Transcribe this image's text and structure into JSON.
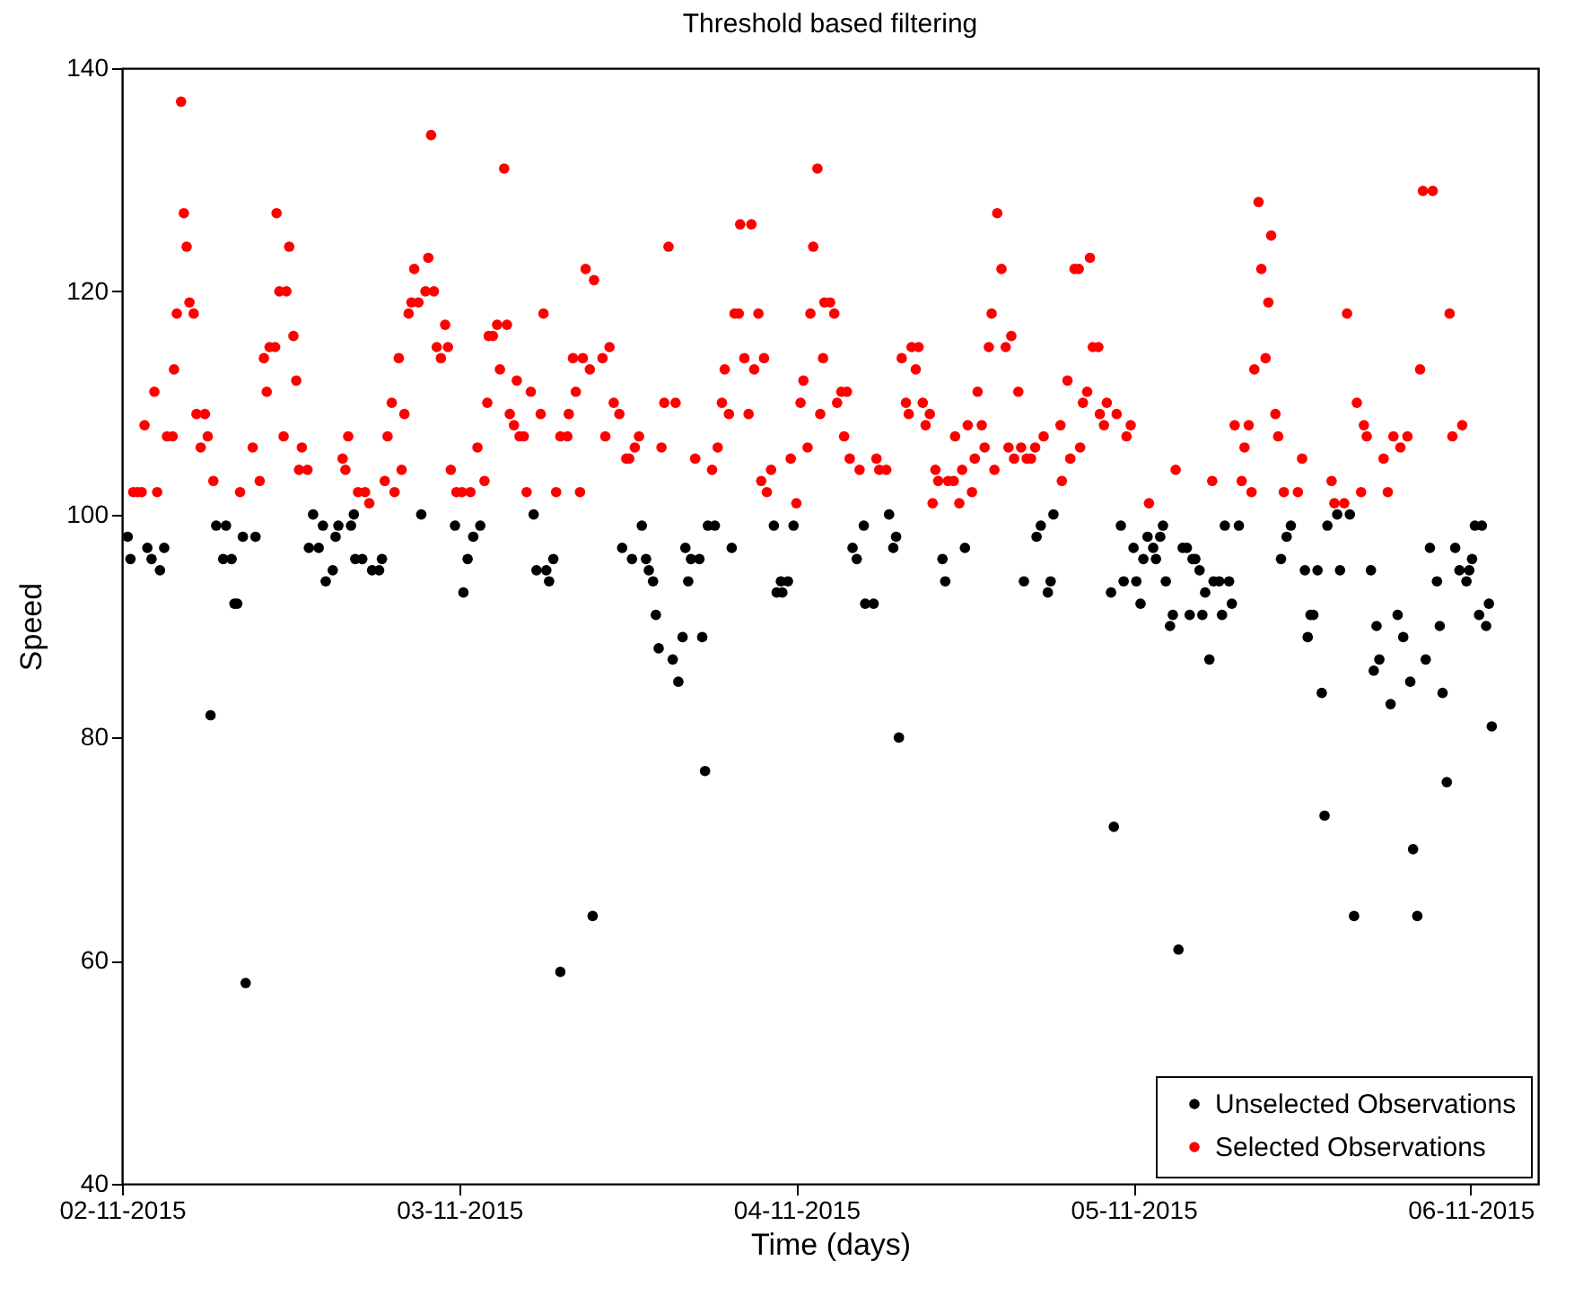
{
  "chart_data": {
    "type": "scatter",
    "title": "Threshold based filtering",
    "xlabel": "Time (days)",
    "ylabel": "Speed",
    "xlim": [
      "2015-11-02T00:00",
      "2015-11-06T04:48"
    ],
    "ylim": [
      40,
      140
    ],
    "yticks": [
      40,
      60,
      80,
      100,
      120,
      140
    ],
    "xticks": [
      {
        "value": "2015-11-02",
        "label": "02-11-2015"
      },
      {
        "value": "2015-11-03",
        "label": "03-11-2015"
      },
      {
        "value": "2015-11-04",
        "label": "04-11-2015"
      },
      {
        "value": "2015-11-05",
        "label": "05-11-2015"
      },
      {
        "value": "2015-11-06",
        "label": "06-11-2015"
      }
    ],
    "grid": false,
    "legend": "bottom right",
    "marker": "circle",
    "series": [
      {
        "name": "Unselected Observations",
        "color": "#000000",
        "x": [
          "2015-11-02T00:24",
          "2015-11-02T00:36",
          "2015-11-02T01:48",
          "2015-11-02T02:06",
          "2015-11-02T02:42",
          "2015-11-02T03:00",
          "2015-11-02T06:18",
          "2015-11-02T06:42",
          "2015-11-02T07:12",
          "2015-11-02T07:24",
          "2015-11-02T07:48",
          "2015-11-02T08:00",
          "2015-11-02T08:12",
          "2015-11-02T08:36",
          "2015-11-02T08:48",
          "2015-11-02T09:30",
          "2015-11-02T13:18",
          "2015-11-02T13:36",
          "2015-11-02T14:00",
          "2015-11-02T14:18",
          "2015-11-02T14:30",
          "2015-11-02T15:00",
          "2015-11-02T15:12",
          "2015-11-02T15:24",
          "2015-11-02T16:18",
          "2015-11-02T16:30",
          "2015-11-02T16:36",
          "2015-11-02T17:06",
          "2015-11-02T17:48",
          "2015-11-02T18:18",
          "2015-11-02T18:30",
          "2015-11-02T21:18",
          "2015-11-02T23:42",
          "2015-11-03T00:18",
          "2015-11-03T00:36",
          "2015-11-03T01:00",
          "2015-11-03T01:30",
          "2015-11-03T05:18",
          "2015-11-03T05:30",
          "2015-11-03T06:12",
          "2015-11-03T06:24",
          "2015-11-03T06:42",
          "2015-11-03T07:12",
          "2015-11-03T09:30",
          "2015-11-03T11:36",
          "2015-11-03T12:18",
          "2015-11-03T13:00",
          "2015-11-03T13:18",
          "2015-11-03T13:30",
          "2015-11-03T13:48",
          "2015-11-03T14:00",
          "2015-11-03T14:12",
          "2015-11-03T15:12",
          "2015-11-03T15:36",
          "2015-11-03T15:54",
          "2015-11-03T16:06",
          "2015-11-03T16:18",
          "2015-11-03T16:30",
          "2015-11-03T17:06",
          "2015-11-03T17:18",
          "2015-11-03T17:30",
          "2015-11-03T17:42",
          "2015-11-03T18:12",
          "2015-11-03T19:24",
          "2015-11-03T22:24",
          "2015-11-03T22:36",
          "2015-11-03T22:54",
          "2015-11-03T23:00",
          "2015-11-03T23:24",
          "2015-11-03T23:48",
          "2015-11-04T04:00",
          "2015-11-04T04:18",
          "2015-11-04T04:48",
          "2015-11-04T04:54",
          "2015-11-04T05:30",
          "2015-11-04T06:36",
          "2015-11-04T06:54",
          "2015-11-04T07:06",
          "2015-11-04T07:18",
          "2015-11-04T10:24",
          "2015-11-04T10:36",
          "2015-11-04T12:00",
          "2015-11-04T16:12",
          "2015-11-04T17:06",
          "2015-11-04T17:24",
          "2015-11-04T17:54",
          "2015-11-04T18:06",
          "2015-11-04T18:18",
          "2015-11-04T22:24",
          "2015-11-04T22:36",
          "2015-11-04T23:06",
          "2015-11-04T23:18",
          "2015-11-05T00:00",
          "2015-11-05T00:12",
          "2015-11-05T00:30",
          "2015-11-05T00:42",
          "2015-11-05T01:00",
          "2015-11-05T01:24",
          "2015-11-05T01:36",
          "2015-11-05T01:54",
          "2015-11-05T02:06",
          "2015-11-05T02:18",
          "2015-11-05T02:36",
          "2015-11-05T02:48",
          "2015-11-05T03:12",
          "2015-11-05T03:30",
          "2015-11-05T03:48",
          "2015-11-05T04:00",
          "2015-11-05T04:12",
          "2015-11-05T04:24",
          "2015-11-05T04:42",
          "2015-11-05T04:54",
          "2015-11-05T05:06",
          "2015-11-05T05:24",
          "2015-11-05T05:42",
          "2015-11-05T06:06",
          "2015-11-05T06:18",
          "2015-11-05T06:30",
          "2015-11-05T06:48",
          "2015-11-05T07:00",
          "2015-11-05T07:30",
          "2015-11-05T10:30",
          "2015-11-05T10:54",
          "2015-11-05T11:12",
          "2015-11-05T12:12",
          "2015-11-05T12:24",
          "2015-11-05T12:36",
          "2015-11-05T12:48",
          "2015-11-05T13:06",
          "2015-11-05T13:24",
          "2015-11-05T13:36",
          "2015-11-05T13:48",
          "2015-11-05T14:30",
          "2015-11-05T14:42",
          "2015-11-05T15:24",
          "2015-11-05T15:42",
          "2015-11-05T16:54",
          "2015-11-05T17:06",
          "2015-11-05T17:18",
          "2015-11-05T17:30",
          "2015-11-05T18:18",
          "2015-11-05T18:48",
          "2015-11-05T19:12",
          "2015-11-05T19:42",
          "2015-11-05T19:54",
          "2015-11-05T20:12",
          "2015-11-05T20:48",
          "2015-11-05T21:06",
          "2015-11-05T21:36",
          "2015-11-05T21:48",
          "2015-11-05T22:00",
          "2015-11-05T22:18",
          "2015-11-05T22:54",
          "2015-11-05T23:12",
          "2015-11-05T23:42",
          "2015-11-05T23:54",
          "2015-11-06T00:06",
          "2015-11-06T00:18",
          "2015-11-06T00:36",
          "2015-11-06T00:48",
          "2015-11-06T01:06",
          "2015-11-06T01:18",
          "2015-11-06T01:30"
        ],
        "values": [
          98,
          96,
          97,
          96,
          95,
          97,
          82,
          99,
          96,
          99,
          96,
          92,
          92,
          98,
          58,
          98,
          97,
          100,
          97,
          99,
          94,
          95,
          98,
          99,
          99,
          100,
          96,
          96,
          95,
          95,
          96,
          100,
          99,
          93,
          96,
          98,
          99,
          100,
          95,
          95,
          94,
          96,
          59,
          64,
          97,
          96,
          99,
          96,
          95,
          94,
          91,
          88,
          87,
          85,
          89,
          97,
          94,
          96,
          96,
          89,
          77,
          99,
          99,
          97,
          99,
          93,
          94,
          93,
          94,
          99,
          97,
          96,
          99,
          92,
          92,
          100,
          97,
          98,
          80,
          96,
          94,
          97,
          94,
          98,
          99,
          93,
          94,
          100,
          93,
          72,
          99,
          94,
          97,
          94,
          92,
          96,
          98,
          97,
          96,
          98,
          99,
          94,
          90,
          91,
          61,
          97,
          97,
          91,
          96,
          96,
          95,
          91,
          93,
          87,
          94,
          94,
          91,
          99,
          94,
          92,
          99,
          96,
          98,
          99,
          95,
          89,
          91,
          91,
          95,
          84,
          73,
          99,
          100,
          95,
          100,
          64,
          95,
          86,
          90,
          87,
          83,
          91,
          89,
          85,
          70,
          64,
          87,
          97,
          94,
          90,
          84,
          76,
          97,
          95,
          94,
          95,
          96,
          99,
          91,
          99,
          90,
          92,
          81
        ]
      },
      {
        "name": "Selected Observations",
        "color": "#ff0000",
        "x": [
          "2015-11-02T00:48",
          "2015-11-02T01:06",
          "2015-11-02T01:24",
          "2015-11-02T01:36",
          "2015-11-02T02:18",
          "2015-11-02T02:30",
          "2015-11-02T03:12",
          "2015-11-02T03:36",
          "2015-11-02T03:42",
          "2015-11-02T03:54",
          "2015-11-02T04:12",
          "2015-11-02T04:24",
          "2015-11-02T04:36",
          "2015-11-02T04:48",
          "2015-11-02T05:06",
          "2015-11-02T05:18",
          "2015-11-02T05:36",
          "2015-11-02T05:54",
          "2015-11-02T06:06",
          "2015-11-02T06:30",
          "2015-11-02T08:24",
          "2015-11-02T09:18",
          "2015-11-02T09:48",
          "2015-11-02T10:06",
          "2015-11-02T10:18",
          "2015-11-02T10:30",
          "2015-11-02T10:54",
          "2015-11-02T11:00",
          "2015-11-02T11:12",
          "2015-11-02T11:30",
          "2015-11-02T11:42",
          "2015-11-02T11:54",
          "2015-11-02T12:12",
          "2015-11-02T12:24",
          "2015-11-02T12:36",
          "2015-11-02T12:48",
          "2015-11-02T13:12",
          "2015-11-02T15:42",
          "2015-11-02T15:54",
          "2015-11-02T16:06",
          "2015-11-02T16:48",
          "2015-11-02T17:18",
          "2015-11-02T17:36",
          "2015-11-02T18:42",
          "2015-11-02T18:54",
          "2015-11-02T19:12",
          "2015-11-02T19:24",
          "2015-11-02T19:42",
          "2015-11-02T19:54",
          "2015-11-02T20:06",
          "2015-11-02T20:24",
          "2015-11-02T20:36",
          "2015-11-02T20:48",
          "2015-11-02T21:06",
          "2015-11-02T21:36",
          "2015-11-02T21:48",
          "2015-11-02T22:00",
          "2015-11-02T22:12",
          "2015-11-02T22:24",
          "2015-11-02T22:42",
          "2015-11-02T23:00",
          "2015-11-02T23:12",
          "2015-11-02T23:24",
          "2015-11-02T23:48",
          "2015-11-03T00:12",
          "2015-11-03T00:48",
          "2015-11-03T01:18",
          "2015-11-03T01:48",
          "2015-11-03T02:00",
          "2015-11-03T02:06",
          "2015-11-03T02:24",
          "2015-11-03T02:42",
          "2015-11-03T02:54",
          "2015-11-03T03:12",
          "2015-11-03T03:24",
          "2015-11-03T03:36",
          "2015-11-03T03:54",
          "2015-11-03T04:06",
          "2015-11-03T04:18",
          "2015-11-03T04:36",
          "2015-11-03T04:48",
          "2015-11-03T05:06",
          "2015-11-03T05:48",
          "2015-11-03T06:00",
          "2015-11-03T06:54",
          "2015-11-03T07:12",
          "2015-11-03T07:42",
          "2015-11-03T07:48",
          "2015-11-03T08:06",
          "2015-11-03T08:18",
          "2015-11-03T08:36",
          "2015-11-03T08:48",
          "2015-11-03T09:00",
          "2015-11-03T09:18",
          "2015-11-03T09:36",
          "2015-11-03T10:12",
          "2015-11-03T10:24",
          "2015-11-03T10:42",
          "2015-11-03T11:00",
          "2015-11-03T11:24",
          "2015-11-03T11:54",
          "2015-11-03T12:06",
          "2015-11-03T12:30",
          "2015-11-03T12:48",
          "2015-11-03T14:24",
          "2015-11-03T14:36",
          "2015-11-03T14:54",
          "2015-11-03T15:24",
          "2015-11-03T16:48",
          "2015-11-03T18:00",
          "2015-11-03T18:24",
          "2015-11-03T18:42",
          "2015-11-03T18:54",
          "2015-11-03T19:12",
          "2015-11-03T19:36",
          "2015-11-03T19:54",
          "2015-11-03T20:00",
          "2015-11-03T20:18",
          "2015-11-03T20:36",
          "2015-11-03T20:48",
          "2015-11-03T21:00",
          "2015-11-03T21:18",
          "2015-11-03T21:30",
          "2015-11-03T21:42",
          "2015-11-03T21:54",
          "2015-11-03T22:12",
          "2015-11-03T23:36",
          "2015-11-04T00:00",
          "2015-11-04T00:18",
          "2015-11-04T00:30",
          "2015-11-04T00:48",
          "2015-11-04T01:00",
          "2015-11-04T01:12",
          "2015-11-04T01:30",
          "2015-11-04T01:42",
          "2015-11-04T01:54",
          "2015-11-04T02:00",
          "2015-11-04T02:24",
          "2015-11-04T02:42",
          "2015-11-04T02:54",
          "2015-11-04T03:12",
          "2015-11-04T03:24",
          "2015-11-04T03:36",
          "2015-11-04T03:48",
          "2015-11-04T04:30",
          "2015-11-04T05:42",
          "2015-11-04T05:54",
          "2015-11-04T06:24",
          "2015-11-04T07:30",
          "2015-11-04T07:48",
          "2015-11-04T08:00",
          "2015-11-04T08:12",
          "2015-11-04T08:30",
          "2015-11-04T08:42",
          "2015-11-04T09:00",
          "2015-11-04T09:12",
          "2015-11-04T09:30",
          "2015-11-04T09:42",
          "2015-11-04T09:54",
          "2015-11-04T10:06",
          "2015-11-04T10:48",
          "2015-11-04T11:12",
          "2015-11-04T11:18",
          "2015-11-04T11:36",
          "2015-11-04T11:48",
          "2015-11-04T12:12",
          "2015-11-04T12:30",
          "2015-11-04T12:42",
          "2015-11-04T12:54",
          "2015-11-04T13:12",
          "2015-11-04T13:24",
          "2015-11-04T13:42",
          "2015-11-04T13:54",
          "2015-11-04T14:06",
          "2015-11-04T14:18",
          "2015-11-04T14:36",
          "2015-11-04T14:54",
          "2015-11-04T15:06",
          "2015-11-04T15:18",
          "2015-11-04T15:30",
          "2015-11-04T15:48",
          "2015-11-04T16:00",
          "2015-11-04T16:24",
          "2015-11-04T16:42",
          "2015-11-04T17:00",
          "2015-11-04T17:36",
          "2015-11-04T18:48",
          "2015-11-04T18:54",
          "2015-11-04T19:18",
          "2015-11-04T19:30",
          "2015-11-04T19:48",
          "2015-11-04T20:06",
          "2015-11-04T20:12",
          "2015-11-04T20:24",
          "2015-11-04T20:42",
          "2015-11-04T20:54",
          "2015-11-04T21:06",
          "2015-11-04T21:30",
          "2015-11-04T21:36",
          "2015-11-04T21:54",
          "2015-11-04T22:06",
          "2015-11-04T22:48",
          "2015-11-04T23:30",
          "2015-11-04T23:48",
          "2015-11-05T01:06",
          "2015-11-05T03:00",
          "2015-11-05T05:36",
          "2015-11-05T07:12",
          "2015-11-05T07:42",
          "2015-11-05T07:54",
          "2015-11-05T08:12",
          "2015-11-05T08:24",
          "2015-11-05T08:36",
          "2015-11-05T08:54",
          "2015-11-05T09:06",
          "2015-11-05T09:24",
          "2015-11-05T09:36",
          "2015-11-05T09:48",
          "2015-11-05T10:06",
          "2015-11-05T10:18",
          "2015-11-05T10:42",
          "2015-11-05T11:42",
          "2015-11-05T12:00",
          "2015-11-05T14:06",
          "2015-11-05T14:18",
          "2015-11-05T15:00",
          "2015-11-05T15:12",
          "2015-11-05T15:54",
          "2015-11-05T16:12",
          "2015-11-05T16:24",
          "2015-11-05T16:36",
          "2015-11-05T17:48",
          "2015-11-05T18:06",
          "2015-11-05T18:30",
          "2015-11-05T19:00",
          "2015-11-05T19:30",
          "2015-11-05T20:24",
          "2015-11-05T20:36",
          "2015-11-05T21:18",
          "2015-11-05T22:30",
          "2015-11-05T22:42",
          "2015-11-05T23:24"
        ],
        "values": [
          102,
          102,
          102,
          108,
          111,
          102,
          107,
          107,
          113,
          118,
          137,
          127,
          124,
          119,
          118,
          109,
          106,
          109,
          107,
          103,
          102,
          106,
          103,
          114,
          111,
          115,
          115,
          127,
          120,
          107,
          120,
          124,
          116,
          112,
          104,
          106,
          104,
          105,
          104,
          107,
          102,
          102,
          101,
          103,
          107,
          110,
          102,
          114,
          104,
          109,
          118,
          119,
          122,
          119,
          120,
          123,
          134,
          120,
          115,
          114,
          117,
          115,
          104,
          102,
          102,
          102,
          106,
          103,
          110,
          116,
          116,
          117,
          113,
          131,
          117,
          109,
          108,
          112,
          107,
          107,
          102,
          111,
          109,
          118,
          102,
          107,
          107,
          109,
          114,
          111,
          102,
          114,
          122,
          113,
          121,
          114,
          107,
          115,
          110,
          109,
          105,
          105,
          106,
          107,
          106,
          110,
          124,
          110,
          105,
          104,
          106,
          110,
          113,
          109,
          118,
          118,
          126,
          114,
          109,
          126,
          113,
          118,
          103,
          114,
          102,
          104,
          105,
          101,
          110,
          112,
          106,
          118,
          124,
          131,
          109,
          114,
          119,
          119,
          118,
          110,
          111,
          107,
          111,
          105,
          104,
          105,
          104,
          104,
          114,
          110,
          109,
          115,
          113,
          115,
          110,
          108,
          109,
          101,
          104,
          103,
          103,
          103,
          107,
          101,
          104,
          108,
          102,
          105,
          111,
          108,
          106,
          115,
          118,
          104,
          127,
          122,
          115,
          106,
          116,
          105,
          111,
          106,
          105,
          105,
          106,
          107,
          108,
          103,
          112,
          105,
          122,
          122,
          106,
          110,
          111,
          123,
          115,
          115,
          109,
          108,
          110,
          109,
          107,
          108,
          101,
          104,
          103,
          108,
          103,
          106,
          108,
          102,
          113,
          128,
          122,
          114,
          119,
          125,
          109,
          107,
          102,
          102,
          105,
          103,
          101,
          101,
          118,
          110,
          102,
          108,
          107,
          105,
          102,
          107,
          106,
          107,
          113,
          129,
          129,
          118,
          107,
          108
        ]
      }
    ]
  }
}
